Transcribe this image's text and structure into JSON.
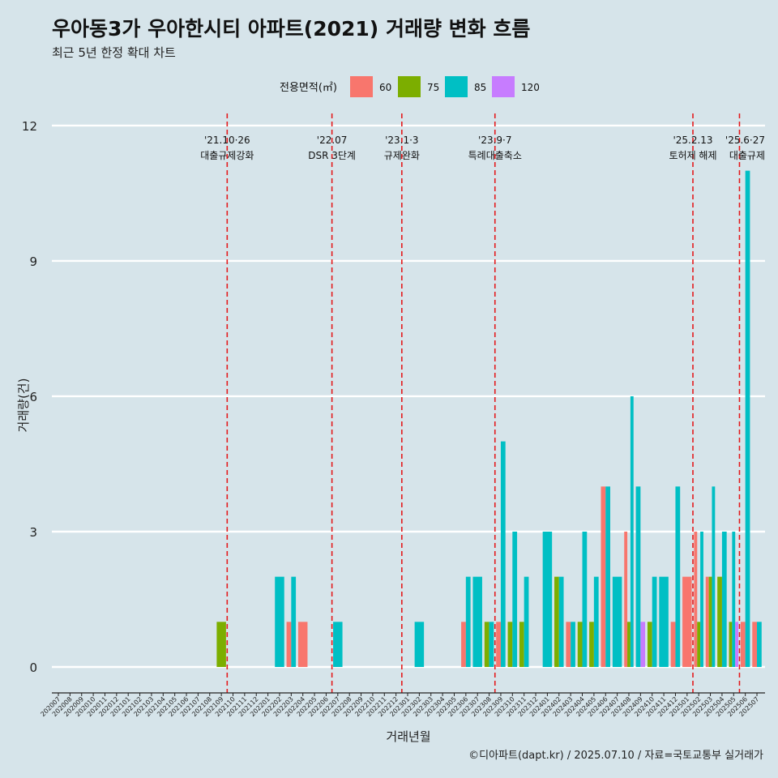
{
  "chart_data": {
    "type": "bar",
    "title": "우아동3가 우아한시티 아파트(2021) 거래량 변화 흐름",
    "subtitle": "최근 5년 한정 확대 차트",
    "xlabel": "거래년월",
    "ylabel": "거래량(건)",
    "caption": "©디아파트(dapt.kr) / 2025.07.10 / 자료=국토교통부 실거래가",
    "legend": {
      "title": "전용면적(㎡)",
      "position": "top",
      "entries": [
        {
          "name": "60",
          "color": "#f8766d"
        },
        {
          "name": "75",
          "color": "#7cae00"
        },
        {
          "name": "85",
          "color": "#00bfc4"
        },
        {
          "name": "120",
          "color": "#c77cff"
        }
      ]
    },
    "ylim": [
      0,
      12
    ],
    "yticks": [
      0,
      3,
      6,
      9,
      12
    ],
    "grid": true,
    "categories": [
      "202007",
      "202008",
      "202009",
      "202010",
      "202011",
      "202012",
      "202101",
      "202102",
      "202103",
      "202104",
      "202105",
      "202106",
      "202107",
      "202108",
      "202109",
      "202110",
      "202111",
      "202112",
      "202201",
      "202202",
      "202203",
      "202204",
      "202205",
      "202206",
      "202207",
      "202208",
      "202209",
      "202210",
      "202211",
      "202212",
      "202301",
      "202302",
      "202303",
      "202304",
      "202305",
      "202306",
      "202307",
      "202308",
      "202309",
      "202310",
      "202311",
      "202312",
      "202401",
      "202402",
      "202403",
      "202404",
      "202405",
      "202406",
      "202407",
      "202408",
      "202409",
      "202410",
      "202411",
      "202412",
      "202501",
      "202502",
      "202503",
      "202504",
      "202505",
      "202506",
      "202507"
    ],
    "bars": [
      {
        "month": "202109",
        "area": "75",
        "value": 1
      },
      {
        "month": "202202",
        "area": "85",
        "value": 2
      },
      {
        "month": "202203",
        "area": "60",
        "value": 1
      },
      {
        "month": "202203",
        "area": "85",
        "value": 2
      },
      {
        "month": "202204",
        "area": "60",
        "value": 1
      },
      {
        "month": "202207",
        "area": "85",
        "value": 1
      },
      {
        "month": "202302",
        "area": "85",
        "value": 1
      },
      {
        "month": "202306",
        "area": "60",
        "value": 1
      },
      {
        "month": "202306",
        "area": "85",
        "value": 2
      },
      {
        "month": "202307",
        "area": "85",
        "value": 2
      },
      {
        "month": "202308",
        "area": "75",
        "value": 1
      },
      {
        "month": "202308",
        "area": "85",
        "value": 1
      },
      {
        "month": "202309",
        "area": "60",
        "value": 1
      },
      {
        "month": "202309",
        "area": "85",
        "value": 5
      },
      {
        "month": "202310",
        "area": "75",
        "value": 1
      },
      {
        "month": "202310",
        "area": "85",
        "value": 3
      },
      {
        "month": "202311",
        "area": "75",
        "value": 1
      },
      {
        "month": "202311",
        "area": "85",
        "value": 2
      },
      {
        "month": "202401",
        "area": "85",
        "value": 3
      },
      {
        "month": "202402",
        "area": "75",
        "value": 2
      },
      {
        "month": "202402",
        "area": "85",
        "value": 2
      },
      {
        "month": "202403",
        "area": "60",
        "value": 1
      },
      {
        "month": "202403",
        "area": "85",
        "value": 1
      },
      {
        "month": "202404",
        "area": "75",
        "value": 1
      },
      {
        "month": "202404",
        "area": "85",
        "value": 3
      },
      {
        "month": "202405",
        "area": "75",
        "value": 1
      },
      {
        "month": "202405",
        "area": "85",
        "value": 2
      },
      {
        "month": "202406",
        "area": "60",
        "value": 4
      },
      {
        "month": "202406",
        "area": "85",
        "value": 4
      },
      {
        "month": "202407",
        "area": "85",
        "value": 2
      },
      {
        "month": "202408",
        "area": "60",
        "value": 3
      },
      {
        "month": "202408",
        "area": "75",
        "value": 1
      },
      {
        "month": "202408",
        "area": "85",
        "value": 6
      },
      {
        "month": "202409",
        "area": "85",
        "value": 4
      },
      {
        "month": "202409",
        "area": "120",
        "value": 1
      },
      {
        "month": "202410",
        "area": "75",
        "value": 1
      },
      {
        "month": "202410",
        "area": "85",
        "value": 2
      },
      {
        "month": "202411",
        "area": "85",
        "value": 2
      },
      {
        "month": "202412",
        "area": "60",
        "value": 1
      },
      {
        "month": "202412",
        "area": "85",
        "value": 4
      },
      {
        "month": "202501",
        "area": "60",
        "value": 2
      },
      {
        "month": "202502",
        "area": "60",
        "value": 3
      },
      {
        "month": "202502",
        "area": "75",
        "value": 1
      },
      {
        "month": "202502",
        "area": "85",
        "value": 3
      },
      {
        "month": "202503",
        "area": "60",
        "value": 2
      },
      {
        "month": "202503",
        "area": "75",
        "value": 2
      },
      {
        "month": "202503",
        "area": "85",
        "value": 4
      },
      {
        "month": "202504",
        "area": "75",
        "value": 2
      },
      {
        "month": "202504",
        "area": "85",
        "value": 3
      },
      {
        "month": "202505",
        "area": "75",
        "value": 1
      },
      {
        "month": "202505",
        "area": "85",
        "value": 3
      },
      {
        "month": "202505",
        "area": "120",
        "value": 1
      },
      {
        "month": "202506",
        "area": "60",
        "value": 1
      },
      {
        "month": "202506",
        "area": "85",
        "value": 11
      },
      {
        "month": "202507",
        "area": "60",
        "value": 1
      },
      {
        "month": "202507",
        "area": "85",
        "value": 1
      }
    ],
    "events": [
      {
        "date_label": "'21.10·26",
        "text": "대출규제강화",
        "month": "202110"
      },
      {
        "date_label": "'22.07",
        "text": "DSR 3단계",
        "month": "202207"
      },
      {
        "date_label": "'23.1·3",
        "text": "규제완화",
        "month": "202301"
      },
      {
        "date_label": "'23.9·7",
        "text": "특례대출축소",
        "month": "202309"
      },
      {
        "date_label": "'25.2.13",
        "text": "토허제 해제",
        "month": "202502"
      },
      {
        "date_label": "'25.6·27",
        "text": "대출규제",
        "month": "202506"
      }
    ]
  }
}
